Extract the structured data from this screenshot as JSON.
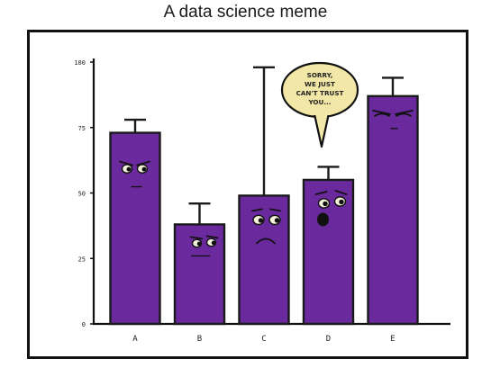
{
  "title": "A data science meme",
  "colors": {
    "bar_fill": "#6a2a9e",
    "bar_stroke": "#1a1a1a",
    "error_bar": "#1a1a1a",
    "bubble_fill": "#f3e7a8",
    "face_ink": "#111111",
    "eye_white": "#f4f1dc"
  },
  "chart_data": {
    "type": "bar",
    "categories": [
      "A",
      "B",
      "C",
      "D",
      "E"
    ],
    "values": [
      73,
      38,
      49,
      55,
      87
    ],
    "error_bars": [
      {
        "low": 73,
        "high": 78
      },
      {
        "low": 38,
        "high": 46
      },
      {
        "low": 49,
        "high": 98
      },
      {
        "low": 55,
        "high": 60
      },
      {
        "low": 87,
        "high": 94
      }
    ],
    "yticks": [
      "0",
      "25",
      "50",
      "75",
      "100"
    ],
    "ylim": [
      0,
      100
    ],
    "xlabel": "",
    "ylabel": "",
    "grid": false,
    "legend": "none",
    "faces": [
      "suspicious",
      "sideways-glance",
      "worried",
      "pleading",
      "annoyed"
    ],
    "speech_bubble": {
      "speaker": "D",
      "lines": [
        "SORRY,",
        "WE JUST",
        "CAN'T TRUST",
        "YOU..."
      ]
    }
  }
}
